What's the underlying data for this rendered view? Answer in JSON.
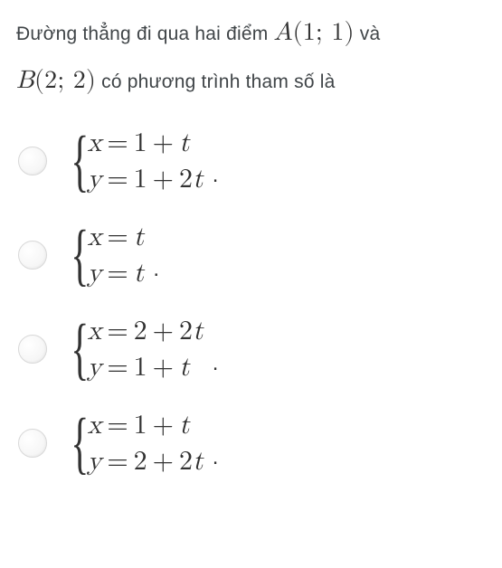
{
  "question": {
    "line1_pre": "Đường thẳng đi qua hai điểm ",
    "pointA": "A(1; 1)",
    "line1_post": " và",
    "pointB": "B(2; 2)",
    "line2_post": " có phương trình tham số là"
  },
  "options": [
    {
      "eq1": "x = 1 + t",
      "eq2": "y = 1 + 2t"
    },
    {
      "eq1": "x = t",
      "eq2": "y = t"
    },
    {
      "eq1": "x = 2 + 2t",
      "eq2": "y = 1 + t"
    },
    {
      "eq1": "x = 1 + t",
      "eq2": "y = 2 + 2t"
    }
  ],
  "period": ".",
  "style": {
    "background_color": "#ffffff",
    "text_color": "#404548",
    "math_color": "#323232",
    "radio_border": "#d8d8d8",
    "question_fontsize": 21,
    "math_fontsize_inline": 28,
    "eq_fontsize": 30,
    "brace_fontsize": 76,
    "radio_diameter": 32,
    "option_gap": 28
  }
}
